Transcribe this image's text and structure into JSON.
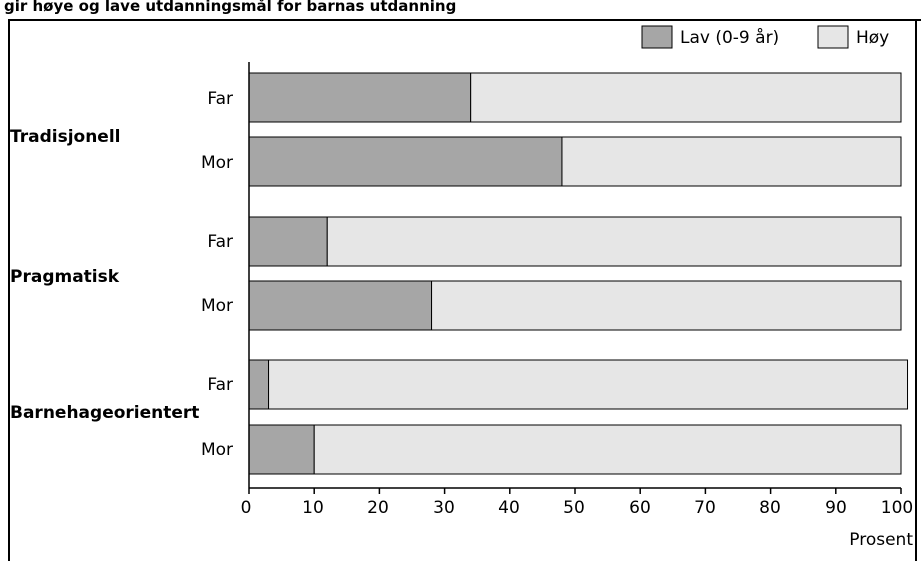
{
  "caption": "gir høye og lave utdanningsmål for barnas utdanning",
  "chart_data": {
    "type": "bar",
    "orientation": "horizontal",
    "stacked": true,
    "xlabel": "Prosent",
    "xlim": [
      0,
      100
    ],
    "x_ticks": [
      "0",
      "10",
      "20",
      "30",
      "40",
      "50",
      "60",
      "70",
      "80",
      "90",
      "100"
    ],
    "legend_position": "top-right",
    "grid": false,
    "series": [
      {
        "name": "Lav (0-9 år)",
        "color": "#a6a6a6"
      },
      {
        "name": "Høy",
        "color": "#e6e6e6"
      }
    ],
    "groups": [
      {
        "label": "Tradisjonell",
        "rows": [
          {
            "label": "Far",
            "values": [
              34,
              66
            ]
          },
          {
            "label": "Mor",
            "values": [
              48,
              52
            ]
          }
        ]
      },
      {
        "label": "Pragmatisk",
        "rows": [
          {
            "label": "Far",
            "values": [
              12,
              88
            ]
          },
          {
            "label": "Mor",
            "values": [
              28,
              72
            ]
          }
        ]
      },
      {
        "label": "Barnehageorientert",
        "rows": [
          {
            "label": "Far",
            "values": [
              3,
              98
            ]
          },
          {
            "label": "Mor",
            "values": [
              10,
              90
            ]
          }
        ]
      }
    ]
  }
}
